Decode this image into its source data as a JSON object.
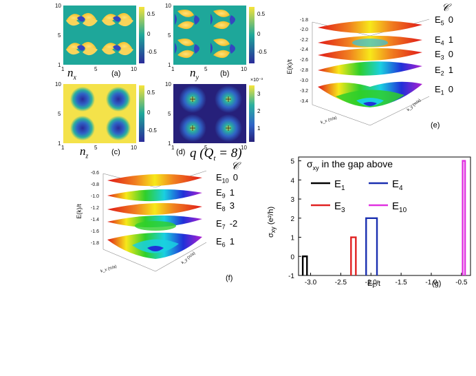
{
  "panels": {
    "a": {
      "label": "(a)",
      "var": "n",
      "sub": "x",
      "xticks": [
        "1",
        "5",
        "10"
      ],
      "yticks": [
        "10",
        "5",
        "1"
      ],
      "colorbar": [
        "0.5",
        "0",
        "-0.5"
      ]
    },
    "b": {
      "label": "(b)",
      "var": "n",
      "sub": "y",
      "xticks": [
        "1",
        "5",
        "10"
      ],
      "yticks": [
        "10",
        "5",
        "1"
      ],
      "colorbar": [
        "0.5",
        "0",
        "-0.5"
      ]
    },
    "c": {
      "label": "(c)",
      "var": "n",
      "sub": "z",
      "xticks": [
        "1",
        "5",
        "10"
      ],
      "yticks": [
        "10",
        "5",
        "1"
      ],
      "colorbar": [
        "0.5",
        "0",
        "-0.5"
      ]
    },
    "d": {
      "label": "(d)",
      "title": "q (Q",
      "title_sub": "t",
      "title_end": " = 8)",
      "xticks": [
        "1",
        "5",
        "10"
      ],
      "yticks": [
        "10",
        "5",
        "1"
      ],
      "colorbar": [
        "3",
        "2",
        "1"
      ],
      "colorbar_exp": "×10⁻³"
    },
    "e": {
      "label": "(e)",
      "chern_header": "𝒞",
      "zticks": [
        "-1.8",
        "-2.0",
        "-2.2",
        "-2.4",
        "-2.6",
        "-2.8",
        "-3.0",
        "-3.2",
        "-3.4"
      ],
      "zlabel": "E(k)/t",
      "levels": [
        {
          "E": "E",
          "sub": "5",
          "c": "0"
        },
        {
          "E": "E",
          "sub": "4",
          "c": "1"
        },
        {
          "E": "E",
          "sub": "3",
          "c": "0"
        },
        {
          "E": "E",
          "sub": "2",
          "c": "1"
        },
        {
          "E": "E",
          "sub": "1",
          "c": "0"
        }
      ],
      "axis_x": "k_x (π/a)",
      "axis_y": "k_y (π/a)"
    },
    "f": {
      "label": "(f)",
      "chern_header": "𝒞",
      "zticks": [
        "-0.6",
        "-0.8",
        "-1.0",
        "-1.2",
        "-1.4",
        "-1.6",
        "-1.8"
      ],
      "zlabel": "E(k)/t",
      "levels": [
        {
          "E": "E",
          "sub": "10",
          "c": "0"
        },
        {
          "E": "E",
          "sub": "9",
          "c": "1"
        },
        {
          "E": "E",
          "sub": "8",
          "c": "3"
        },
        {
          "E": "E",
          "sub": "7",
          "c": "-2"
        },
        {
          "E": "E",
          "sub": "6",
          "c": "1"
        }
      ],
      "axis_x": "k_x (π/a)",
      "axis_y": "k_y (π/a)"
    },
    "g": {
      "label": "(g)",
      "legend_title": "σ",
      "legend_title_sub": "xy",
      "legend_title_rest": " in the gap above",
      "xlabel": "E",
      "xlabel_sub": "F",
      "xlabel_rest": "/t",
      "ylabel": "σ",
      "ylabel_sub": "xy",
      "ylabel_rest": " (e²/h)"
    }
  },
  "chart_data": {
    "type": "bar",
    "title": "σxy in the gap above",
    "xlabel": "E_F/t",
    "ylabel": "σxy (e²/h)",
    "xlim": [
      -3.2,
      -0.35
    ],
    "ylim": [
      -1,
      5.2
    ],
    "xticks": [
      -3.0,
      -2.5,
      -2.0,
      -1.5,
      -1.0,
      -0.5
    ],
    "yticks": [
      -1,
      0,
      1,
      2,
      3,
      4,
      5
    ],
    "series": [
      {
        "name": "E1",
        "color": "#000000",
        "x_start": -3.13,
        "x_end": -3.06,
        "value": 0
      },
      {
        "name": "E3",
        "color": "#e02020",
        "x_start": -2.33,
        "x_end": -2.25,
        "value": 1
      },
      {
        "name": "E4",
        "color": "#1a2fb0",
        "x_start": -2.08,
        "x_end": -1.9,
        "value": 2
      },
      {
        "name": "E10",
        "color": "#e030e0",
        "x_start": -0.48,
        "x_end": -0.44,
        "value": 5
      }
    ],
    "legend": [
      {
        "name": "E",
        "sub": "1",
        "color": "#000000"
      },
      {
        "name": "E",
        "sub": "4",
        "color": "#1a2fb0"
      },
      {
        "name": "E",
        "sub": "3",
        "color": "#e02020"
      },
      {
        "name": "E",
        "sub": "10",
        "color": "#e030e0"
      }
    ]
  }
}
